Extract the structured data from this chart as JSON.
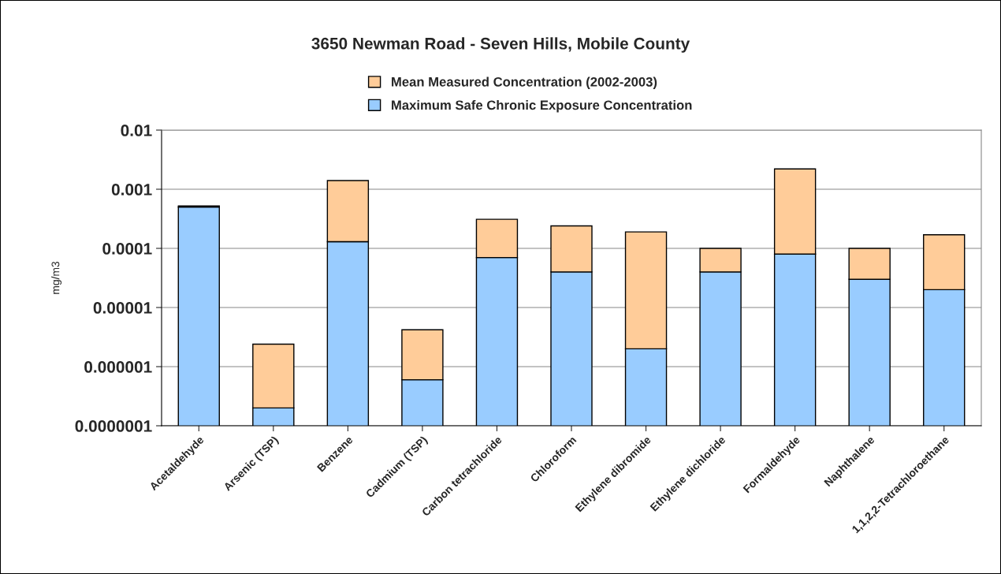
{
  "chart_data": {
    "type": "bar",
    "title": "3650 Newman Road - Seven Hills, Mobile County",
    "ylabel": "mg/m3",
    "categories": [
      "Acetaldehyde",
      "Arsenic (TSP)",
      "Benzene",
      "Cadmium (TSP)",
      "Carbon tetrachloride",
      "Chloroform",
      "Ethylene dibromide",
      "Ethylene dichloride",
      "Formaldehyde",
      "Naphthalene",
      "1,1,2,2-Tetrachloroethane"
    ],
    "stacked": true,
    "log": true,
    "series": [
      {
        "name": "Maximum Safe Chronic Exposure Concentration",
        "color": "#99ccff",
        "values": [
          0.0005,
          2e-07,
          0.00013,
          6e-07,
          7e-05,
          4e-05,
          2e-06,
          4e-05,
          8e-05,
          3e-05,
          2e-05
        ]
      },
      {
        "name": "Mean Measured Concentration (2002-2003)",
        "color": "#ffcc99",
        "values": [
          2e-05,
          2.2e-06,
          0.00127,
          3.6e-06,
          0.00024,
          0.0002,
          0.000188,
          6e-05,
          0.00212,
          7e-05,
          0.00015
        ]
      }
    ],
    "ylim": [
      1e-07,
      0.01
    ],
    "yticks": [
      {
        "value": 1e-07,
        "label": "0.0000001"
      },
      {
        "value": 1e-06,
        "label": "0.000001"
      },
      {
        "value": 1e-05,
        "label": "0.00001"
      },
      {
        "value": 0.0001,
        "label": "0.0001"
      },
      {
        "value": 0.001,
        "label": "0.001"
      },
      {
        "value": 0.01,
        "label": "0.01"
      }
    ],
    "grid": "y",
    "legend": "top"
  }
}
